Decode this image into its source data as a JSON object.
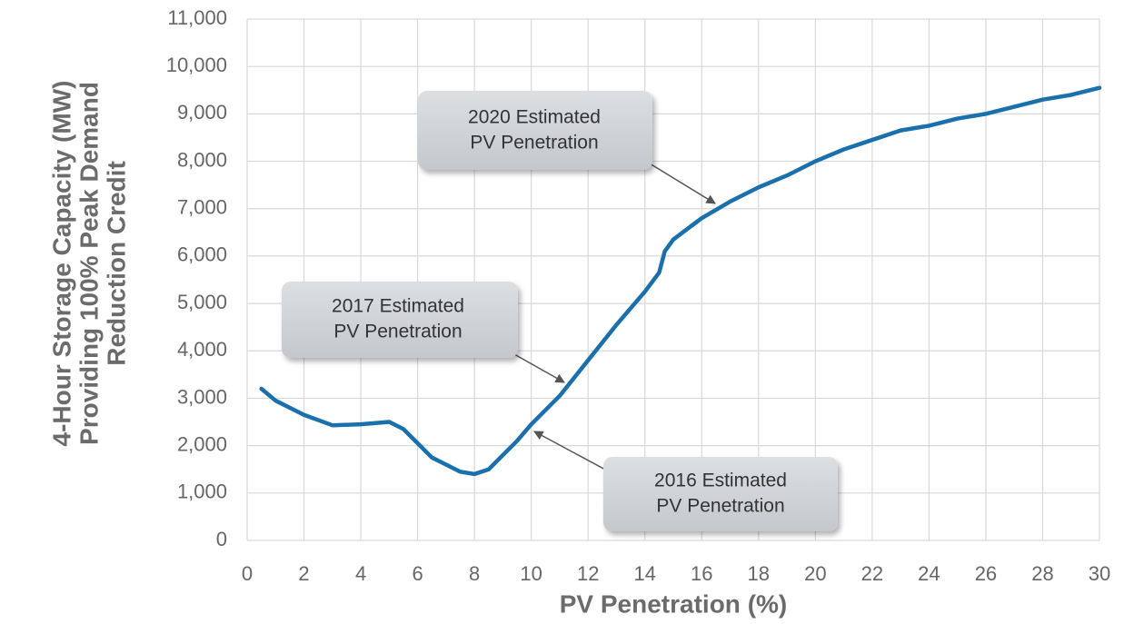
{
  "chart_data": {
    "type": "line",
    "xlabel": "PV Penetration (%)",
    "ylabel": [
      "4-Hour Storage Capacity (MW)",
      "Providing 100% Peak Demand",
      "Reduction Credit"
    ],
    "x": [
      0.5,
      1,
      2,
      3,
      4,
      5,
      5.5,
      6,
      6.5,
      7,
      7.5,
      8,
      8.5,
      9,
      9.5,
      10,
      11,
      12,
      13,
      14,
      14.5,
      14.7,
      15,
      16,
      17,
      18,
      19,
      20,
      21,
      22,
      23,
      24,
      25,
      26,
      27,
      28,
      29,
      30
    ],
    "series": [
      {
        "color": "#1a6fad",
        "values": [
          3200,
          2950,
          2650,
          2430,
          2450,
          2500,
          2350,
          2050,
          1750,
          1600,
          1450,
          1400,
          1500,
          1800,
          2100,
          2450,
          3050,
          3800,
          4550,
          5250,
          5650,
          6100,
          6350,
          6800,
          7150,
          7450,
          7700,
          8000,
          8250,
          8450,
          8650,
          8750,
          8900,
          9000,
          9150,
          9300,
          9400,
          9550
        ]
      }
    ],
    "xlim": [
      0,
      30
    ],
    "xticks": [
      0,
      2,
      4,
      6,
      8,
      10,
      12,
      14,
      16,
      18,
      20,
      22,
      24,
      26,
      28,
      30
    ],
    "ylim": [
      0,
      11000
    ],
    "yticks": [
      0,
      {
        "value": 1000,
        "label": "1,000"
      },
      {
        "value": 2000,
        "label": "2,000"
      },
      {
        "value": 3000,
        "label": "3,000"
      },
      {
        "value": 4000,
        "label": "4,000"
      },
      {
        "value": 5000,
        "label": "5,000"
      },
      {
        "value": 6000,
        "label": "6,000"
      },
      {
        "value": 7000,
        "label": "7,000"
      },
      {
        "value": 8000,
        "label": "8,000"
      },
      {
        "value": 9000,
        "label": "9,000"
      },
      {
        "value": 10000,
        "label": "10,000"
      },
      {
        "value": 11000,
        "label": "11,000"
      }
    ],
    "grid": true,
    "annotations": [
      [
        "2020 Estimated",
        "PV Penetration"
      ],
      [
        "2017 Estimated",
        "PV Penetration"
      ],
      [
        "2016 Estimated",
        "PV Penetration"
      ]
    ]
  }
}
